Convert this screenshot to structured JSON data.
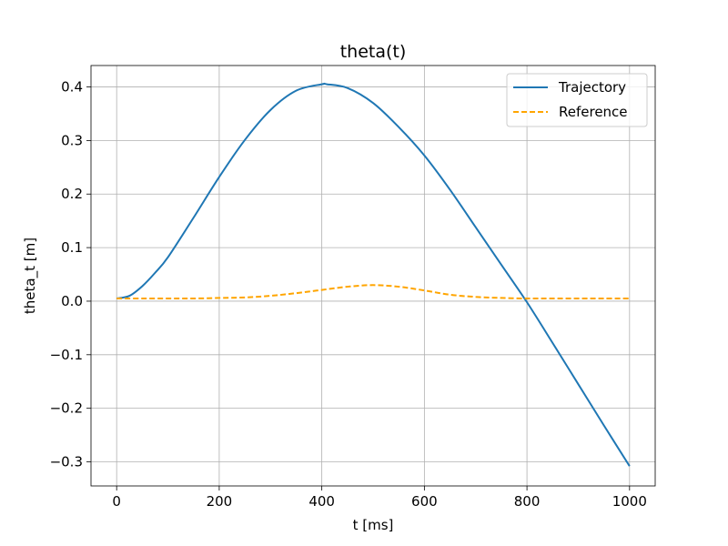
{
  "chart_data": {
    "type": "line",
    "title": "theta(t)",
    "xlabel": "t [ms]",
    "ylabel": "theta_t [m]",
    "xlim": [
      -50,
      1050
    ],
    "ylim": [
      -0.345,
      0.44
    ],
    "xticks": [
      0,
      200,
      400,
      600,
      800,
      1000
    ],
    "yticks": [
      -0.3,
      -0.2,
      -0.1,
      0.0,
      0.1,
      0.2,
      0.3,
      0.4
    ],
    "xtick_labels": [
      "0",
      "200",
      "400",
      "600",
      "800",
      "1000"
    ],
    "ytick_labels": [
      "−0.3",
      "−0.2",
      "−0.1",
      "0.0",
      "0.1",
      "0.2",
      "0.3",
      "0.4"
    ],
    "grid": true,
    "legend_position": "top-right",
    "series": [
      {
        "name": "Trajectory",
        "color": "#1f77b4",
        "style": "solid",
        "x": [
          0,
          25,
          50,
          75,
          100,
          150,
          200,
          250,
          300,
          350,
          400,
          410,
          450,
          500,
          550,
          600,
          650,
          700,
          750,
          800,
          850,
          900,
          950,
          1000
        ],
        "y": [
          0.005,
          0.01,
          0.028,
          0.053,
          0.082,
          0.156,
          0.232,
          0.301,
          0.357,
          0.393,
          0.405,
          0.405,
          0.398,
          0.37,
          0.325,
          0.272,
          0.208,
          0.138,
          0.068,
          -0.002,
          -0.078,
          -0.155,
          -0.232,
          -0.308
        ]
      },
      {
        "name": "Reference",
        "color": "#ffa500",
        "style": "dashed",
        "x": [
          0,
          50,
          100,
          150,
          200,
          250,
          300,
          350,
          400,
          450,
          500,
          550,
          600,
          650,
          700,
          750,
          800,
          850,
          900,
          950,
          1000
        ],
        "y": [
          0.005,
          0.005,
          0.005,
          0.005,
          0.006,
          0.007,
          0.01,
          0.015,
          0.021,
          0.027,
          0.03,
          0.027,
          0.02,
          0.012,
          0.008,
          0.006,
          0.005,
          0.005,
          0.005,
          0.005,
          0.005
        ]
      }
    ]
  }
}
